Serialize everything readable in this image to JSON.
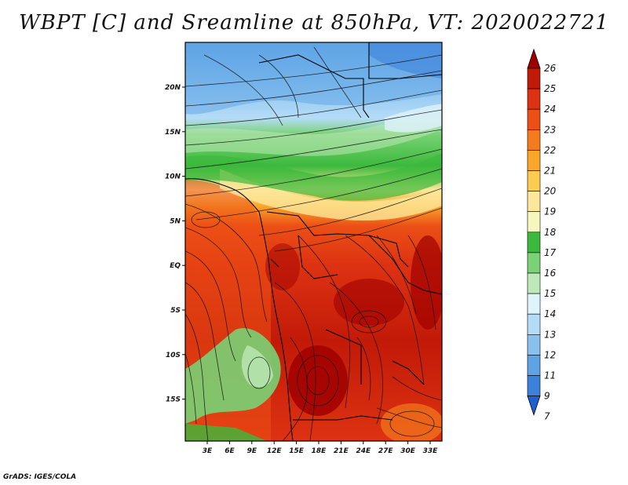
{
  "title": "WBPT [C] and Sreamline at 850hPa, VT: 2020022721",
  "footer": "GrADS: IGES/COLA",
  "map": {
    "lat_labels": [
      "20N",
      "15N",
      "10N",
      "5N",
      "EQ",
      "5S",
      "10S",
      "15S"
    ],
    "lon_labels": [
      "3E",
      "6E",
      "9E",
      "12E",
      "15E",
      "18E",
      "21E",
      "24E",
      "27E",
      "30E",
      "33E"
    ]
  },
  "colorbar": {
    "labels": [
      "26",
      "25",
      "24",
      "23",
      "22",
      "21",
      "20",
      "19",
      "18",
      "17",
      "16",
      "15",
      "14",
      "13",
      "12",
      "11",
      "9",
      "7"
    ],
    "colors": [
      "#a00000",
      "#c21a08",
      "#dd3212",
      "#ec5016",
      "#f47a1c",
      "#f9a72a",
      "#fbcb52",
      "#fde79a",
      "#f6f6bf",
      "#3cb93c",
      "#79d275",
      "#bde8b8",
      "#dff3fb",
      "#b5dcf7",
      "#88c1ee",
      "#5da3e6",
      "#3d82da",
      "#1f5fd0"
    ]
  }
}
